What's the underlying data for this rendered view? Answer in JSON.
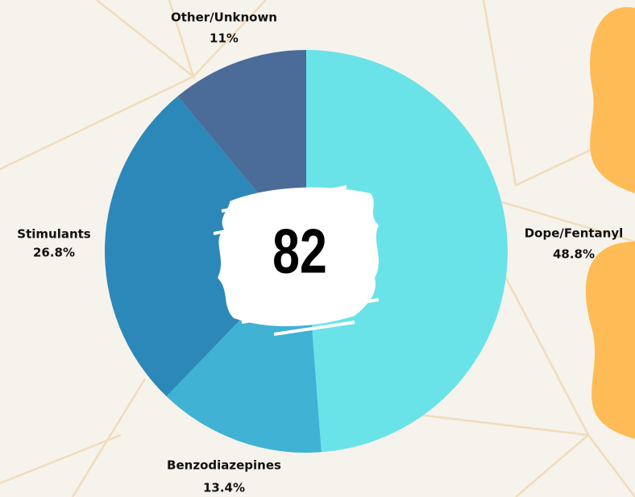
{
  "chart_data": {
    "type": "pie",
    "categories": [
      "Dope/Fentanyl",
      "Benzodiazepines",
      "Stimulants",
      "Other/Unknown"
    ],
    "values": [
      48.8,
      13.4,
      26.8,
      11
    ],
    "value_labels": [
      "48.8%",
      "13.4%",
      "26.8%",
      "11%"
    ],
    "colors": [
      "#6ae3e8",
      "#40b2d3",
      "#2c88b8",
      "#4b6b98"
    ],
    "center_text": "82"
  }
}
